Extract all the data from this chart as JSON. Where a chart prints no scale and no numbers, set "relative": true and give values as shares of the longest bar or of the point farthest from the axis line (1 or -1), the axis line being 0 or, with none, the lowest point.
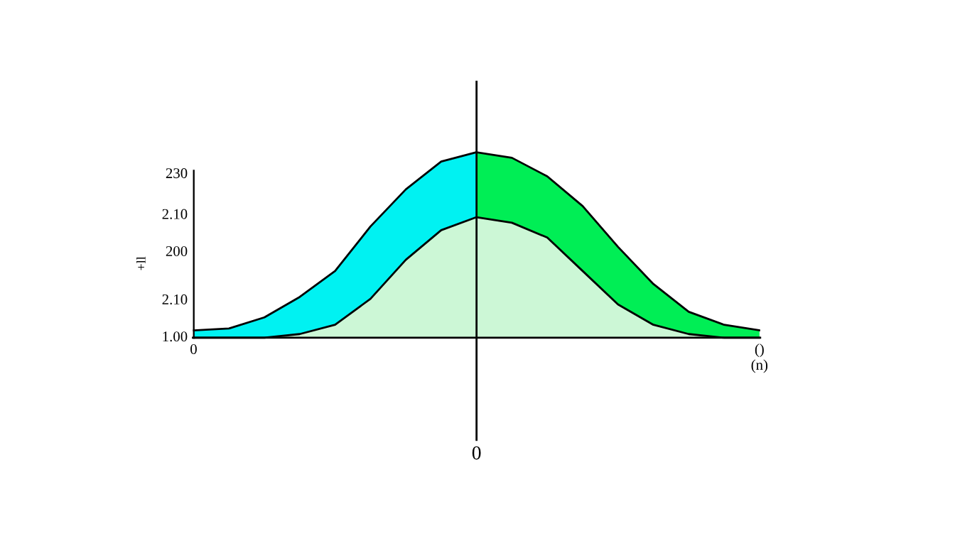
{
  "chart_data": {
    "type": "area",
    "relative": true,
    "categories": [
      "0",
      null,
      null,
      null,
      null,
      null,
      null,
      null,
      null,
      null,
      null,
      null,
      null,
      null,
      null,
      null,
      "()"
    ],
    "xlabel": "(n)",
    "ylabel": "+ll",
    "annotations": [
      "1.00",
      "2.10",
      "200",
      "2.10",
      "230",
      "0"
    ],
    "series": [
      {
        "color": "#00f2f2",
        "values": [
          0.04,
          0.05,
          0.11,
          0.22,
          0.36,
          0.6,
          0.8,
          0.95,
          1,
          null,
          null,
          null,
          null,
          null,
          null,
          null,
          null
        ]
      },
      {
        "color": "#00ee55",
        "values": [
          null,
          null,
          null,
          null,
          null,
          null,
          null,
          null,
          1,
          0.97,
          0.87,
          0.71,
          0.49,
          0.29,
          0.14,
          0.07,
          0.04
        ]
      },
      {
        "color": "#ccf7d6",
        "values": [
          0,
          0,
          0,
          0.02,
          0.07,
          0.21,
          0.42,
          0.58,
          0.65,
          0.62,
          0.54,
          0.36,
          0.18,
          0.07,
          0.02,
          0,
          0
        ]
      }
    ],
    "legend": false
  }
}
